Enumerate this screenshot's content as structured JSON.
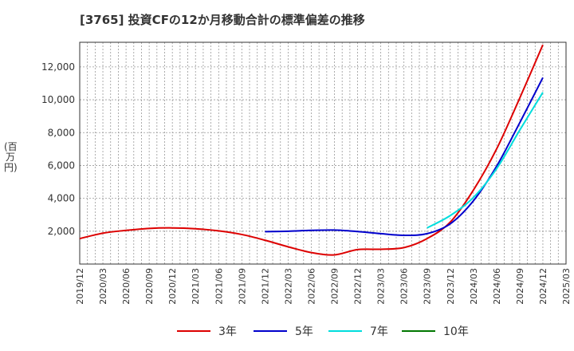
{
  "chart_data": {
    "type": "line",
    "title": "[3765]  投資CFの12か月移動合計の標準偏差の推移",
    "ylabel": "(百万円)",
    "xlabel": "",
    "ylim": [
      0,
      13500
    ],
    "yticks": [
      2000,
      4000,
      6000,
      8000,
      10000,
      12000
    ],
    "ytick_labels": [
      "2,000",
      "4,000",
      "6,000",
      "8,000",
      "10,000",
      "12,000"
    ],
    "xtick_labels": [
      "2019/12",
      "2020/03",
      "2020/06",
      "2020/09",
      "2020/12",
      "2021/03",
      "2021/06",
      "2021/09",
      "2021/12",
      "2022/03",
      "2022/06",
      "2022/09",
      "2022/12",
      "2023/03",
      "2023/06",
      "2023/09",
      "2023/12",
      "2024/03",
      "2024/06",
      "2024/09",
      "2024/12",
      "2025/03"
    ],
    "grid": true,
    "legend_position": "bottom",
    "series": [
      {
        "name": "3年",
        "color": "#dd0000",
        "x": [
          "2019/12",
          "2020/03",
          "2020/06",
          "2020/09",
          "2020/12",
          "2021/03",
          "2021/06",
          "2021/09",
          "2021/12",
          "2022/03",
          "2022/06",
          "2022/09",
          "2022/12",
          "2023/03",
          "2023/06",
          "2023/09",
          "2023/12",
          "2024/03",
          "2024/06",
          "2024/09",
          "2024/12"
        ],
        "values": [
          1550,
          1880,
          2050,
          2170,
          2200,
          2150,
          2020,
          1800,
          1450,
          1050,
          700,
          560,
          880,
          900,
          1000,
          1550,
          2550,
          4500,
          7000,
          10100,
          13350
        ]
      },
      {
        "name": "5年",
        "color": "#0000cc",
        "x": [
          "2021/12",
          "2022/03",
          "2022/06",
          "2022/09",
          "2022/12",
          "2023/03",
          "2023/06",
          "2023/09",
          "2023/12",
          "2024/03",
          "2024/06",
          "2024/09",
          "2024/12"
        ],
        "values": [
          1970,
          2000,
          2050,
          2070,
          1980,
          1850,
          1750,
          1850,
          2450,
          3850,
          5950,
          8600,
          11350
        ]
      },
      {
        "name": "7年",
        "color": "#00dddd",
        "x": [
          "2023/09",
          "2023/12",
          "2024/03",
          "2024/06",
          "2024/09",
          "2024/12"
        ],
        "values": [
          2200,
          2950,
          4050,
          5800,
          8150,
          10450
        ]
      },
      {
        "name": "10年",
        "color": "#007700",
        "x": [],
        "values": []
      }
    ]
  }
}
